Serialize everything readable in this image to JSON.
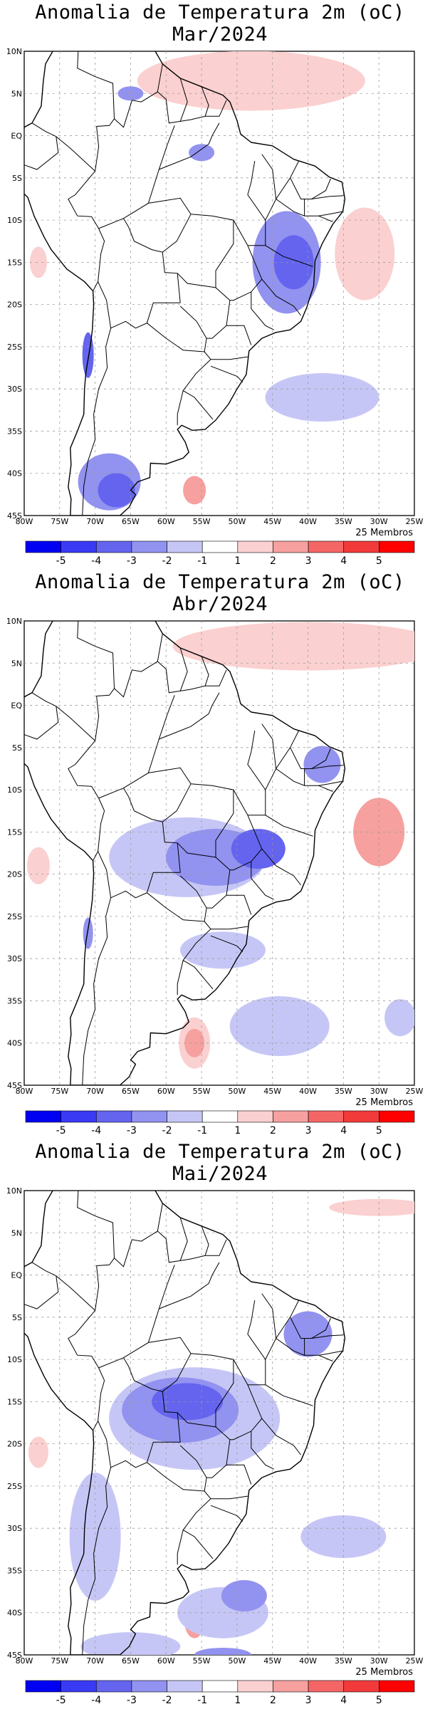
{
  "panels": [
    {
      "title": "Anomalia de Temperatura 2m (oC) Mar/2024",
      "members": "25 Membros",
      "lat_labels": [
        "10N",
        "5N",
        "EQ",
        "5S",
        "10S",
        "15S",
        "20S",
        "25S",
        "30S",
        "35S",
        "40S",
        "45S"
      ],
      "lon_labels": [
        "80W",
        "75W",
        "70W",
        "65W",
        "60W",
        "55W",
        "50W",
        "45W",
        "40W",
        "35W",
        "30W",
        "25W"
      ]
    },
    {
      "title": "Anomalia de Temperatura 2m (oC) Abr/2024",
      "members": "25 Membros",
      "lat_labels": [
        "10N",
        "5N",
        "EQ",
        "5S",
        "10S",
        "15S",
        "20S",
        "25S",
        "30S",
        "35S",
        "40S",
        "45S"
      ],
      "lon_labels": [
        "80W",
        "75W",
        "70W",
        "65W",
        "60W",
        "55W",
        "50W",
        "45W",
        "40W",
        "35W",
        "30W",
        "25W"
      ]
    },
    {
      "title": "Anomalia de Temperatura 2m (oC) Mai/2024",
      "members": "25 Membros",
      "lat_labels": [
        "10N",
        "5N",
        "EQ",
        "5S",
        "10S",
        "15S",
        "20S",
        "25S",
        "30S",
        "35S",
        "40S",
        "45S"
      ],
      "lon_labels": [
        "80W",
        "75W",
        "70W",
        "65W",
        "60W",
        "55W",
        "50W",
        "45W",
        "40W",
        "35W",
        "30W",
        "25W"
      ]
    }
  ],
  "colorbar": {
    "labels": [
      "-5",
      "-4",
      "-3",
      "-2",
      "-1",
      "1",
      "2",
      "3",
      "4",
      "5"
    ],
    "colors": [
      "#0000f2",
      "#3a3af5",
      "#6464ef",
      "#9292f0",
      "#c6c6f6",
      "#ffffff",
      "#fbd0d0",
      "#f6a0a0",
      "#f46666",
      "#f23a3a",
      "#ff0000"
    ]
  }
}
